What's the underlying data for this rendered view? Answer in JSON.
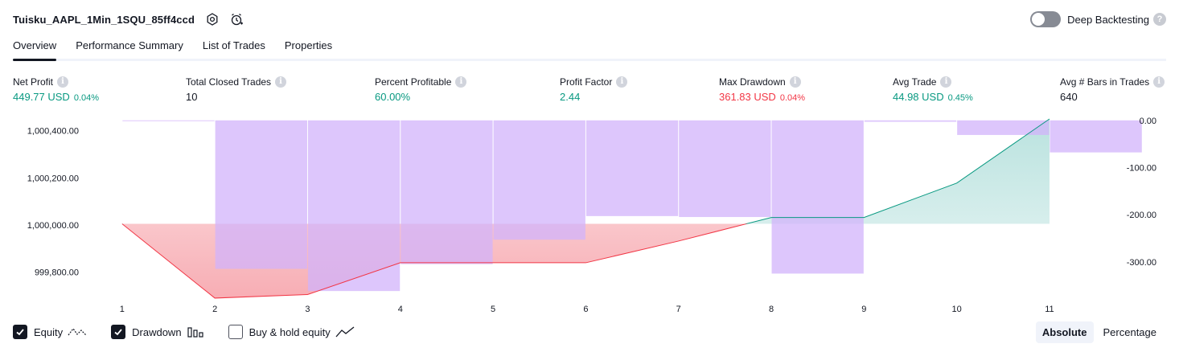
{
  "header": {
    "title": "Tuisku_AAPL_1Min_1SQU_85ff4ccd",
    "icons": [
      "settings-icon",
      "add-alert-icon"
    ],
    "deep_backtesting": {
      "label": "Deep Backtesting",
      "enabled": false,
      "help": "?"
    }
  },
  "tabs": [
    {
      "label": "Overview",
      "active": true
    },
    {
      "label": "Performance Summary",
      "active": false
    },
    {
      "label": "List of Trades",
      "active": false
    },
    {
      "label": "Properties",
      "active": false
    }
  ],
  "metrics": {
    "net_profit": {
      "label": "Net Profit",
      "value": "449.77 USD",
      "pct": "0.04%"
    },
    "closed_trades": {
      "label": "Total Closed Trades",
      "value": "10"
    },
    "percent_profitable": {
      "label": "Percent Profitable",
      "value": "60.00%"
    },
    "profit_factor": {
      "label": "Profit Factor",
      "value": "2.44"
    },
    "max_drawdown": {
      "label": "Max Drawdown",
      "value": "361.83 USD",
      "pct": "0.04%"
    },
    "avg_trade": {
      "label": "Avg Trade",
      "value": "44.98 USD",
      "pct": "0.45%"
    },
    "avg_bars": {
      "label": "Avg # Bars in Trades",
      "value": "640"
    },
    "info_glyph": "i"
  },
  "chart_data": {
    "type": "line",
    "x": [
      1,
      2,
      3,
      4,
      5,
      6,
      7,
      8,
      9,
      10,
      11
    ],
    "xlim": [
      0.62,
      11.72
    ],
    "left_axis": {
      "ticks": [
        "1,000,400.00",
        "1,000,200.00",
        "1,000,000.00",
        "999,800.00"
      ],
      "tick_values": [
        1000400,
        1000200,
        1000000,
        999800
      ],
      "range": [
        999700,
        1000450
      ]
    },
    "right_axis": {
      "ticks": [
        "0.00",
        "-100.00",
        "-200.00",
        "-300.00"
      ],
      "tick_values": [
        0,
        -100,
        -200,
        -300
      ],
      "range": [
        -372,
        3
      ]
    },
    "series": [
      {
        "name": "Equity",
        "values": [
          1000005,
          999690,
          999705,
          999840,
          999840,
          999840,
          999932,
          1000032,
          1000032,
          1000178,
          1000450
        ],
        "colors": {
          "up": "#089981",
          "down": "#f23645",
          "fill_up": "#b2dfdb",
          "fill_down": "#f7a9b0"
        }
      },
      {
        "name": "Drawdown",
        "values": [
          -1,
          -315,
          -362,
          -305,
          -253,
          -203,
          -205,
          -325,
          -3,
          -31,
          -68
        ],
        "color": "#d1b3fb"
      }
    ],
    "legend_placement": "bottom-left"
  },
  "legend": [
    {
      "label": "Equity",
      "checked": true,
      "glyph": "equity-line-icon"
    },
    {
      "label": "Drawdown",
      "checked": true,
      "glyph": "drawdown-bars-icon"
    },
    {
      "label": "Buy & hold equity",
      "checked": false,
      "glyph": "buy-hold-line-icon"
    }
  ],
  "view_mode": {
    "options": [
      "Absolute",
      "Percentage"
    ],
    "selected": "Absolute"
  }
}
